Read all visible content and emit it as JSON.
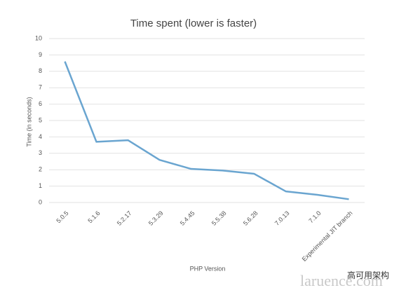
{
  "chart_data": {
    "type": "line",
    "title": "Time spent (lower is faster)",
    "x_label": "PHP Version",
    "y_label": "Time (in seconds)",
    "categories": [
      "5.0.5",
      "5.1.6",
      "5.2.17",
      "5.3.29",
      "5.4.45",
      "5.5.38",
      "5.6.28",
      "7.0.13",
      "7.1.0",
      "Experimental JIT branch"
    ],
    "series": [
      {
        "name": "Time spent",
        "color": "#6aa5d0",
        "values": [
          8.6,
          3.7,
          3.8,
          2.6,
          2.05,
          1.95,
          1.75,
          0.68,
          0.47,
          0.2
        ]
      }
    ],
    "ylim": [
      0,
      10
    ],
    "yticks": [
      0,
      1,
      2,
      3,
      4,
      5,
      6,
      7,
      8,
      9,
      10
    ],
    "grid": true
  },
  "watermarks": [
    "高可用架构",
    "laruence.com"
  ]
}
